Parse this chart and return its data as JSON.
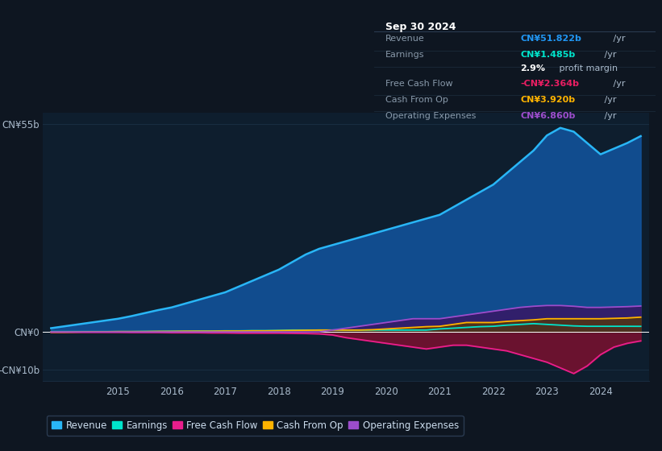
{
  "bg_color": "#0e1621",
  "plot_bg_color": "#0e1e2e",
  "grid_color": "#1a3045",
  "zero_line_color": "#ffffff",
  "title_box_bg": "#000000",
  "title_box_border": "#2a3a4a",
  "years": [
    2013.75,
    2014.0,
    2014.25,
    2014.5,
    2014.75,
    2015.0,
    2015.25,
    2015.5,
    2015.75,
    2016.0,
    2016.25,
    2016.5,
    2016.75,
    2017.0,
    2017.25,
    2017.5,
    2017.75,
    2018.0,
    2018.25,
    2018.5,
    2018.75,
    2019.0,
    2019.25,
    2019.5,
    2019.75,
    2020.0,
    2020.25,
    2020.5,
    2020.75,
    2021.0,
    2021.25,
    2021.5,
    2021.75,
    2022.0,
    2022.25,
    2022.5,
    2022.75,
    2023.0,
    2023.25,
    2023.5,
    2023.75,
    2024.0,
    2024.25,
    2024.5,
    2024.75
  ],
  "revenue": [
    1.0,
    1.5,
    2.0,
    2.5,
    3.0,
    3.5,
    4.2,
    5.0,
    5.8,
    6.5,
    7.5,
    8.5,
    9.5,
    10.5,
    12.0,
    13.5,
    15.0,
    16.5,
    18.5,
    20.5,
    22.0,
    23.0,
    24.0,
    25.0,
    26.0,
    27.0,
    28.0,
    29.0,
    30.0,
    31.0,
    33.0,
    35.0,
    37.0,
    39.0,
    42.0,
    45.0,
    48.0,
    52.0,
    54.0,
    53.0,
    50.0,
    47.0,
    48.5,
    50.0,
    51.822
  ],
  "earnings": [
    0.1,
    0.1,
    0.1,
    0.1,
    0.1,
    0.1,
    0.1,
    0.15,
    0.15,
    0.2,
    0.2,
    0.25,
    0.25,
    0.3,
    0.3,
    0.35,
    0.35,
    0.4,
    0.5,
    0.5,
    0.5,
    0.5,
    0.5,
    0.5,
    0.5,
    0.5,
    0.5,
    0.5,
    0.5,
    0.8,
    1.0,
    1.2,
    1.4,
    1.5,
    1.8,
    2.0,
    2.2,
    2.0,
    1.8,
    1.6,
    1.5,
    1.5,
    1.5,
    1.5,
    1.485
  ],
  "free_cash_flow": [
    -0.1,
    -0.1,
    -0.1,
    -0.1,
    -0.1,
    -0.1,
    -0.15,
    -0.15,
    -0.15,
    -0.2,
    -0.2,
    -0.2,
    -0.25,
    -0.25,
    -0.3,
    -0.3,
    -0.3,
    -0.3,
    -0.35,
    -0.4,
    -0.5,
    -0.8,
    -1.5,
    -2.0,
    -2.5,
    -3.0,
    -3.5,
    -4.0,
    -4.5,
    -4.0,
    -3.5,
    -3.5,
    -4.0,
    -4.5,
    -5.0,
    -6.0,
    -7.0,
    -8.0,
    -9.5,
    -11.0,
    -9.0,
    -6.0,
    -4.0,
    -3.0,
    -2.364
  ],
  "cash_from_op": [
    -0.05,
    -0.05,
    0.0,
    0.05,
    0.05,
    0.1,
    0.1,
    0.1,
    0.15,
    0.15,
    0.2,
    0.2,
    0.2,
    0.25,
    0.25,
    0.3,
    0.3,
    0.35,
    0.4,
    0.45,
    0.5,
    0.5,
    0.5,
    0.5,
    0.6,
    0.8,
    1.0,
    1.2,
    1.4,
    1.5,
    2.0,
    2.5,
    2.5,
    2.5,
    2.8,
    3.0,
    3.2,
    3.5,
    3.5,
    3.5,
    3.5,
    3.5,
    3.6,
    3.7,
    3.92
  ],
  "operating_expenses": [
    0.0,
    0.0,
    0.0,
    0.0,
    0.0,
    0.0,
    0.0,
    0.0,
    0.0,
    0.0,
    0.0,
    0.0,
    0.0,
    0.0,
    0.0,
    0.0,
    0.0,
    0.0,
    0.0,
    0.0,
    0.0,
    0.5,
    1.0,
    1.5,
    2.0,
    2.5,
    3.0,
    3.5,
    3.5,
    3.5,
    4.0,
    4.5,
    5.0,
    5.5,
    6.0,
    6.5,
    6.8,
    7.0,
    7.0,
    6.8,
    6.5,
    6.5,
    6.6,
    6.7,
    6.86
  ],
  "ylim": [
    -13,
    58
  ],
  "yticks": [
    -10,
    0,
    55
  ],
  "ytick_labels": [
    "-CN¥10b",
    "CN¥0",
    "CN¥55b"
  ],
  "x_ticks": [
    2015,
    2016,
    2017,
    2018,
    2019,
    2020,
    2021,
    2022,
    2023,
    2024
  ],
  "legend_items": [
    {
      "label": "Revenue",
      "color": "#29b6f6"
    },
    {
      "label": "Earnings",
      "color": "#00e5cc"
    },
    {
      "label": "Free Cash Flow",
      "color": "#e91e8c"
    },
    {
      "label": "Cash From Op",
      "color": "#ffb300"
    },
    {
      "label": "Operating Expenses",
      "color": "#9c4dcc"
    }
  ],
  "info_box": {
    "date": "Sep 30 2024",
    "date_color": "#ffffff",
    "rows": [
      {
        "label": "Revenue",
        "val": "CN¥51.822b",
        "suffix": " /yr",
        "val_color": "#2196f3",
        "label_color": "#8899aa"
      },
      {
        "label": "Earnings",
        "val": "CN¥1.485b",
        "suffix": " /yr",
        "val_color": "#00e5cc",
        "label_color": "#8899aa"
      },
      {
        "label": "",
        "val": "2.9%",
        "suffix": " profit margin",
        "val_color": "#ffffff",
        "label_color": "#8899aa"
      },
      {
        "label": "Free Cash Flow",
        "val": "-CN¥2.364b",
        "suffix": " /yr",
        "val_color": "#e91e63",
        "label_color": "#8899aa"
      },
      {
        "label": "Cash From Op",
        "val": "CN¥3.920b",
        "suffix": " /yr",
        "val_color": "#ffb300",
        "label_color": "#8899aa"
      },
      {
        "label": "Operating Expenses",
        "val": "CN¥6.860b",
        "suffix": " /yr",
        "val_color": "#9c4dcc",
        "label_color": "#8899aa"
      }
    ]
  }
}
